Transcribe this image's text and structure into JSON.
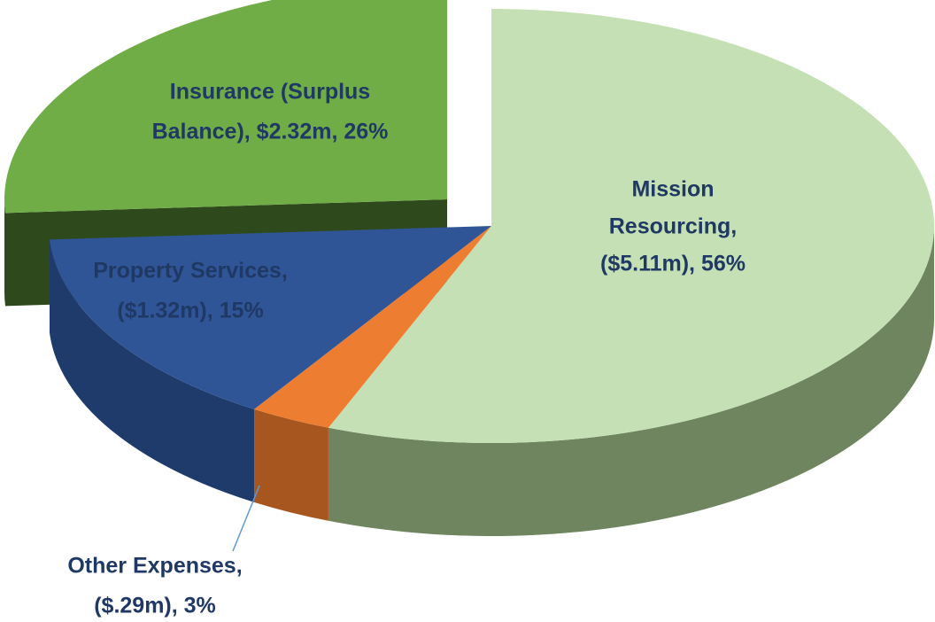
{
  "chart_data": {
    "type": "pie",
    "data_labels": [
      [
        "Mission",
        "Resourcing,",
        "($5.11m), 56%"
      ],
      [
        "Other Expenses,",
        "($.29m), 3%"
      ],
      [
        "Property Services,",
        "($1.32m), 15%"
      ],
      [
        "Insurance (Surplus",
        "Balance),  $2.32m, 26%"
      ]
    ],
    "values": [
      56,
      3,
      15,
      26
    ],
    "colors": [
      "#c5e0b4",
      "#ed7d31",
      "#2f5597",
      "#70ad47"
    ],
    "side_colors": [
      "#6f8560",
      "#a8561f",
      "#1f3b6b",
      "#2e4a1d"
    ]
  }
}
